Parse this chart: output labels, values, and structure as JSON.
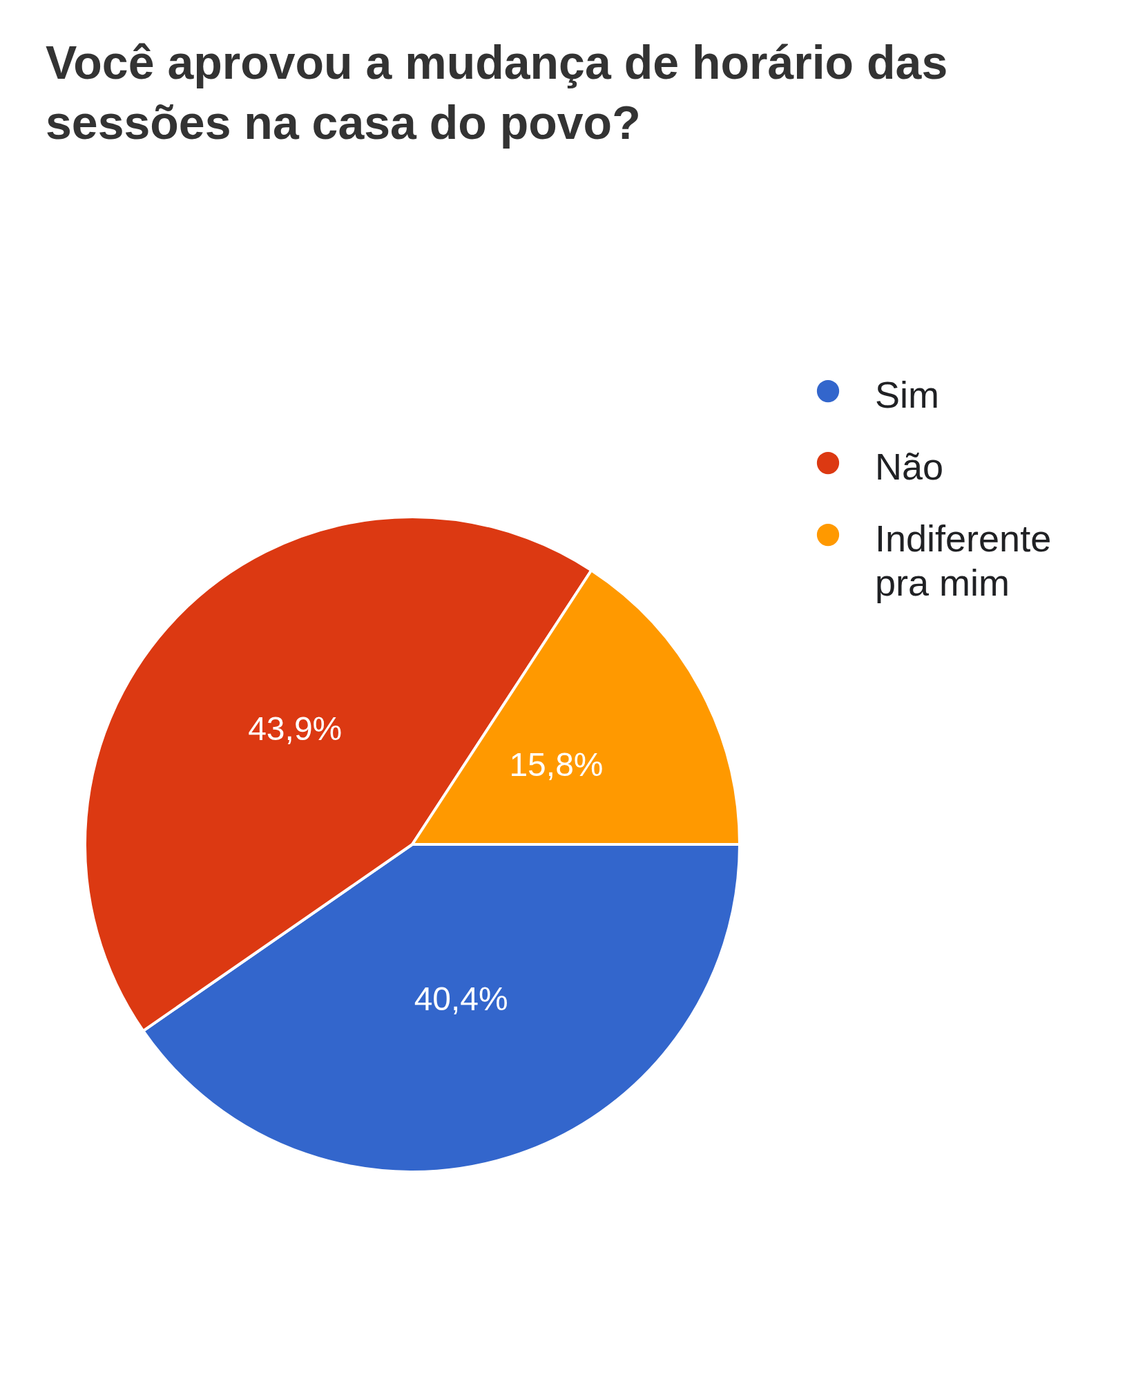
{
  "chart_data": {
    "type": "pie",
    "title": "Você aprovou a mudança de horário das sessões na casa do povo?",
    "categories": [
      "Sim",
      "Não",
      "Indiferente pra mim"
    ],
    "values": [
      40.4,
      43.9,
      15.8
    ],
    "colors": [
      "#3366cc",
      "#dc3912",
      "#ff9900"
    ],
    "value_labels": [
      "40,4%",
      "43,9%",
      "15,8%"
    ],
    "legend": "top right"
  }
}
